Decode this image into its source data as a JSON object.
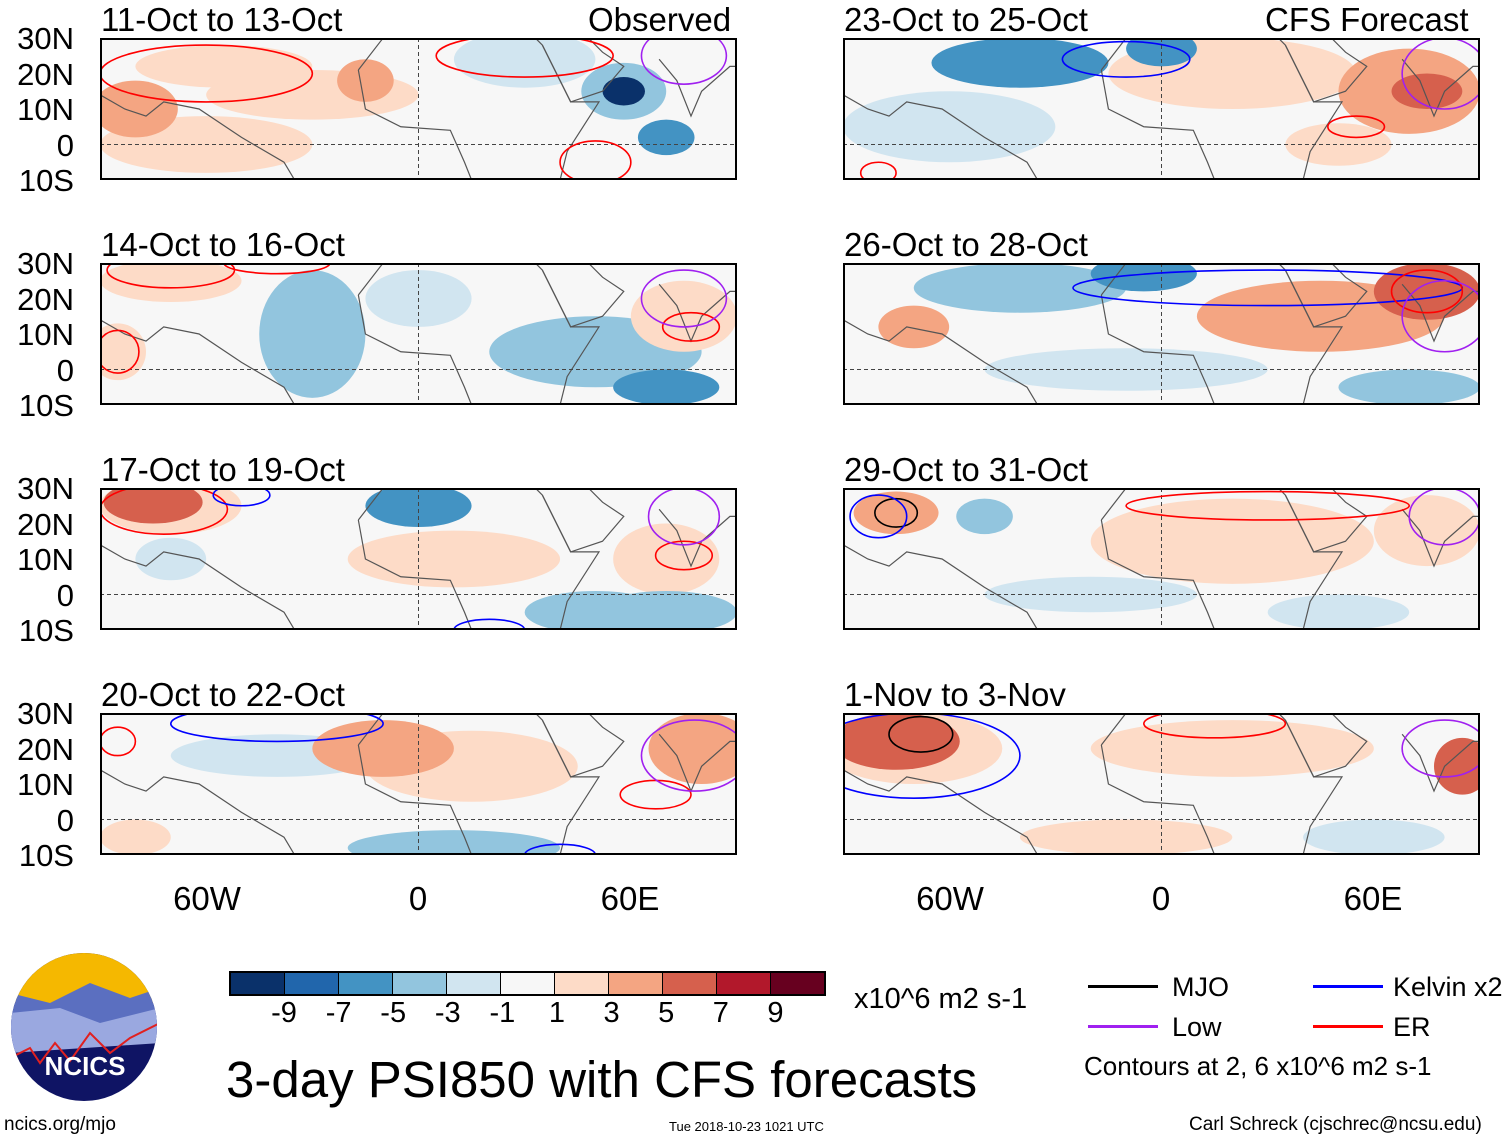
{
  "header": {
    "observed_label": "Observed",
    "forecast_label": "CFS Forecast"
  },
  "lat_labels": [
    "30N",
    "20N",
    "10N",
    "0",
    "10S"
  ],
  "lon_labels": [
    "60W",
    "0",
    "60E"
  ],
  "panels": [
    {
      "title": "11-Oct to 13-Oct",
      "blobs": [
        [
          -80,
          10,
          12,
          8,
          5
        ],
        [
          -55,
          22,
          25,
          6,
          2
        ],
        [
          -30,
          14,
          30,
          7,
          2
        ],
        [
          -15,
          18,
          8,
          6,
          4
        ],
        [
          30,
          24,
          20,
          8,
          -2
        ],
        [
          58,
          15,
          6,
          4,
          -9
        ],
        [
          58,
          15,
          12,
          8,
          -4
        ],
        [
          70,
          2,
          8,
          5,
          -5
        ],
        [
          -60,
          0,
          30,
          8,
          2
        ],
        [
          10,
          10,
          20,
          10,
          1
        ]
      ],
      "contours": [
        [
          -60,
          20,
          30,
          8,
          "ER"
        ],
        [
          30,
          25,
          25,
          6,
          "ER"
        ],
        [
          50,
          -5,
          10,
          6,
          "ER"
        ],
        [
          75,
          25,
          12,
          8,
          "Low"
        ]
      ]
    },
    {
      "title": "14-Oct to 16-Oct",
      "blobs": [
        [
          -70,
          25,
          20,
          6,
          3
        ],
        [
          -30,
          10,
          15,
          18,
          -3
        ],
        [
          0,
          20,
          15,
          8,
          -2
        ],
        [
          50,
          5,
          30,
          10,
          -3
        ],
        [
          70,
          -5,
          15,
          5,
          -5
        ],
        [
          75,
          15,
          15,
          10,
          3
        ],
        [
          -85,
          5,
          8,
          8,
          2
        ]
      ],
      "contours": [
        [
          -70,
          28,
          18,
          5,
          "ER"
        ],
        [
          -85,
          5,
          6,
          6,
          "ER"
        ],
        [
          77,
          12,
          8,
          4,
          "ER"
        ],
        [
          -40,
          30,
          15,
          3,
          "ER"
        ],
        [
          75,
          20,
          12,
          8,
          "Low"
        ]
      ]
    },
    {
      "title": "17-Oct to 19-Oct",
      "blobs": [
        [
          -75,
          26,
          14,
          6,
          7
        ],
        [
          -70,
          25,
          20,
          8,
          3
        ],
        [
          0,
          25,
          15,
          6,
          -5
        ],
        [
          10,
          10,
          30,
          8,
          2
        ],
        [
          70,
          10,
          15,
          10,
          3
        ],
        [
          70,
          -5,
          20,
          6,
          -4
        ],
        [
          -70,
          10,
          10,
          6,
          -2
        ],
        [
          50,
          -5,
          20,
          6,
          -3
        ]
      ],
      "contours": [
        [
          -72,
          24,
          18,
          7,
          "ER"
        ],
        [
          -50,
          28,
          8,
          3,
          "Kelvin"
        ],
        [
          75,
          11,
          8,
          4,
          "ER"
        ],
        [
          75,
          22,
          10,
          8,
          "Low"
        ],
        [
          20,
          -10,
          10,
          3,
          "Kelvin"
        ]
      ]
    },
    {
      "title": "20-Oct to 22-Oct",
      "blobs": [
        [
          -10,
          20,
          20,
          8,
          4
        ],
        [
          15,
          15,
          30,
          10,
          2
        ],
        [
          80,
          20,
          15,
          10,
          5
        ],
        [
          -40,
          18,
          30,
          6,
          -2
        ],
        [
          10,
          -8,
          30,
          5,
          -3
        ],
        [
          -80,
          -5,
          10,
          5,
          2
        ]
      ],
      "contours": [
        [
          -40,
          27,
          30,
          5,
          "Kelvin"
        ],
        [
          67,
          7,
          10,
          4,
          "ER"
        ],
        [
          -85,
          22,
          5,
          4,
          "ER"
        ],
        [
          78,
          18,
          15,
          10,
          "Low"
        ],
        [
          40,
          -10,
          10,
          3,
          "Kelvin"
        ]
      ]
    },
    {
      "title": "23-Oct to 25-Oct",
      "blobs": [
        [
          -40,
          23,
          25,
          7,
          -5
        ],
        [
          0,
          27,
          10,
          5,
          -5
        ],
        [
          20,
          20,
          35,
          10,
          2
        ],
        [
          70,
          15,
          20,
          12,
          4
        ],
        [
          75,
          15,
          10,
          5,
          6
        ],
        [
          -60,
          5,
          30,
          10,
          -2
        ],
        [
          50,
          0,
          15,
          6,
          2
        ]
      ],
      "contours": [
        [
          -10,
          24,
          18,
          5,
          "Kelvin"
        ],
        [
          55,
          5,
          8,
          3,
          "ER"
        ],
        [
          -80,
          -8,
          5,
          3,
          "ER"
        ],
        [
          80,
          20,
          12,
          10,
          "Low"
        ]
      ]
    },
    {
      "title": "26-Oct to 28-Oct",
      "blobs": [
        [
          75,
          22,
          15,
          8,
          7
        ],
        [
          45,
          15,
          35,
          10,
          4
        ],
        [
          -70,
          12,
          10,
          6,
          4
        ],
        [
          -40,
          23,
          30,
          7,
          -4
        ],
        [
          -5,
          27,
          15,
          5,
          -5
        ],
        [
          -10,
          0,
          40,
          6,
          -2
        ],
        [
          70,
          -5,
          20,
          5,
          -3
        ]
      ],
      "contours": [
        [
          30,
          23,
          55,
          5,
          "Kelvin"
        ],
        [
          75,
          22,
          10,
          6,
          "ER"
        ],
        [
          80,
          15,
          12,
          10,
          "Low"
        ]
      ]
    },
    {
      "title": "29-Oct to 31-Oct",
      "blobs": [
        [
          -75,
          23,
          12,
          6,
          5
        ],
        [
          -50,
          22,
          8,
          5,
          -3
        ],
        [
          20,
          15,
          40,
          12,
          3
        ],
        [
          75,
          18,
          15,
          10,
          3
        ],
        [
          -20,
          0,
          30,
          5,
          -2
        ],
        [
          50,
          -5,
          20,
          5,
          -2
        ]
      ],
      "contours": [
        [
          -75,
          23,
          6,
          4,
          "MJO"
        ],
        [
          30,
          25,
          40,
          4,
          "ER"
        ],
        [
          -80,
          22,
          8,
          6,
          "Kelvin"
        ],
        [
          80,
          22,
          10,
          8,
          "Low"
        ]
      ]
    },
    {
      "title": "1-Nov to 3-Nov",
      "blobs": [
        [
          -75,
          22,
          18,
          8,
          6
        ],
        [
          -70,
          20,
          25,
          10,
          3
        ],
        [
          20,
          20,
          40,
          8,
          2
        ],
        [
          85,
          15,
          8,
          8,
          6
        ],
        [
          -10,
          -5,
          30,
          5,
          2
        ],
        [
          60,
          -5,
          20,
          5,
          -2
        ]
      ],
      "contours": [
        [
          -68,
          24,
          9,
          5,
          "MJO"
        ],
        [
          -70,
          18,
          30,
          12,
          "Kelvin"
        ],
        [
          15,
          27,
          20,
          4,
          "ER"
        ],
        [
          80,
          20,
          12,
          8,
          "Low"
        ]
      ]
    }
  ],
  "colorbar": {
    "colors": [
      "#0a316a",
      "#2166ac",
      "#4393c3",
      "#92c5de",
      "#d1e5f0",
      "#f7f7f7",
      "#fddbc7",
      "#f4a582",
      "#d6604d",
      "#b2182b",
      "#67001f"
    ],
    "labels": [
      "-9",
      "-7",
      "-5",
      "-3",
      "-1",
      "1",
      "3",
      "5",
      "7",
      "9"
    ],
    "units": "x10^6 m2 s-1"
  },
  "legend": {
    "items": [
      {
        "label": "MJO",
        "color": "#000000"
      },
      {
        "label": "Kelvin x2",
        "color": "#0000ff"
      },
      {
        "label": "Low",
        "color": "#a020f0"
      },
      {
        "label": "ER",
        "color": "#ff0000"
      }
    ],
    "note": "Contours at 2, 6 x10^6 m2 s-1"
  },
  "logo_text": "NCICS",
  "title": "3-day PSI850 with CFS forecasts",
  "footer": {
    "url": "ncics.org/mjo",
    "timestamp": "Tue 2018-10-23 1021 UTC",
    "author": "Carl Schreck (cjschrec@ncsu.edu)"
  }
}
